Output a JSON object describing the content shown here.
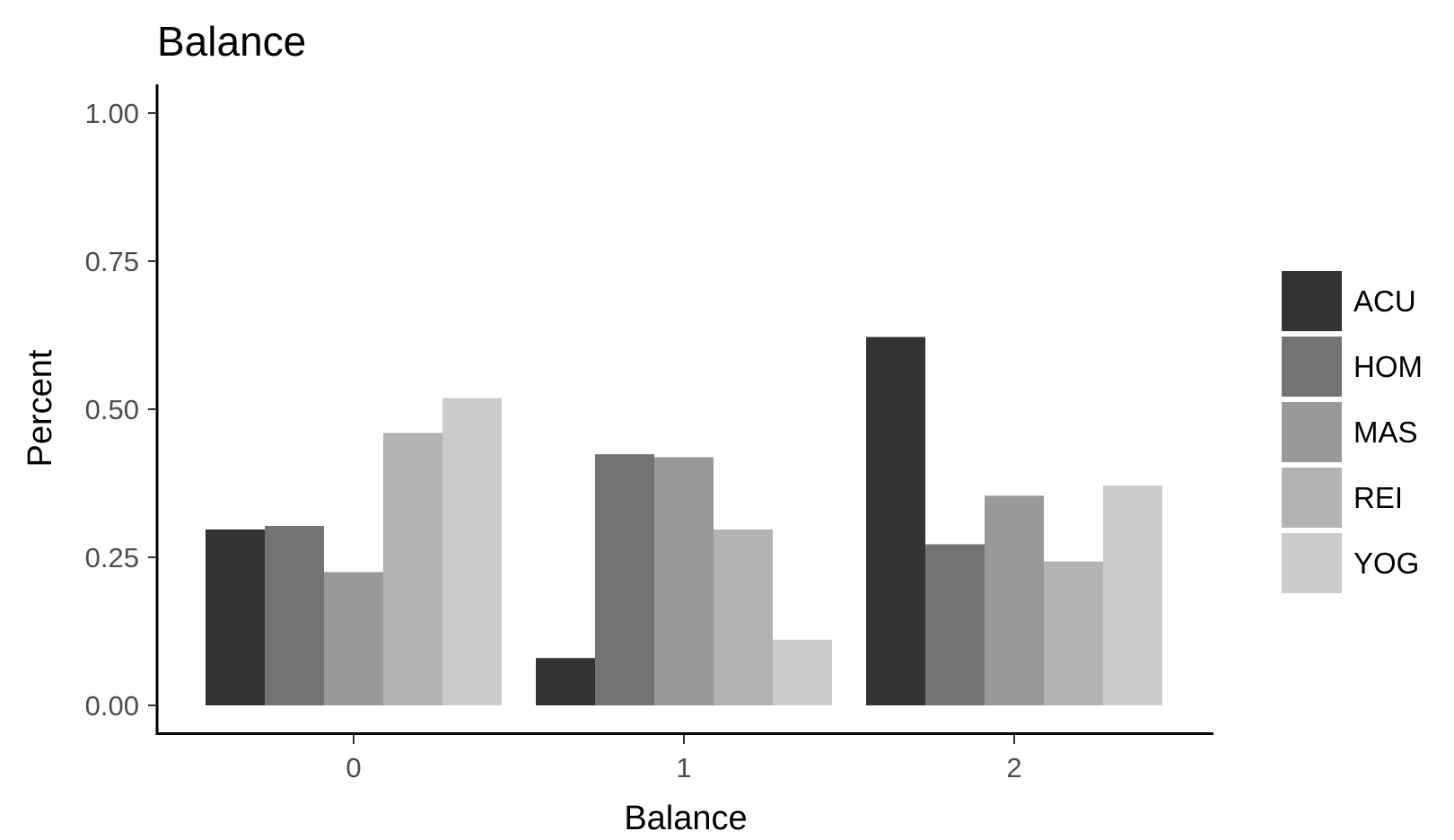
{
  "chart_data": {
    "type": "bar",
    "title": "Balance",
    "xlabel": "Balance",
    "ylabel": "Percent",
    "categories": [
      "0",
      "1",
      "2"
    ],
    "ylim": [
      0,
      1
    ],
    "yticks": [
      "0.00",
      "0.25",
      "0.50",
      "0.75",
      "1.00"
    ],
    "grid": false,
    "legend_position": "right",
    "series": [
      {
        "name": "ACU",
        "color": "#333333",
        "values": [
          0.297,
          0.08,
          0.622
        ]
      },
      {
        "name": "HOM",
        "color": "#737373",
        "values": [
          0.303,
          0.424,
          0.272
        ]
      },
      {
        "name": "MAS",
        "color": "#999999",
        "values": [
          0.225,
          0.419,
          0.354
        ]
      },
      {
        "name": "REI",
        "color": "#b3b3b3",
        "values": [
          0.46,
          0.297,
          0.243
        ]
      },
      {
        "name": "YOG",
        "color": "#cccccc",
        "values": [
          0.519,
          0.111,
          0.371
        ]
      }
    ]
  }
}
